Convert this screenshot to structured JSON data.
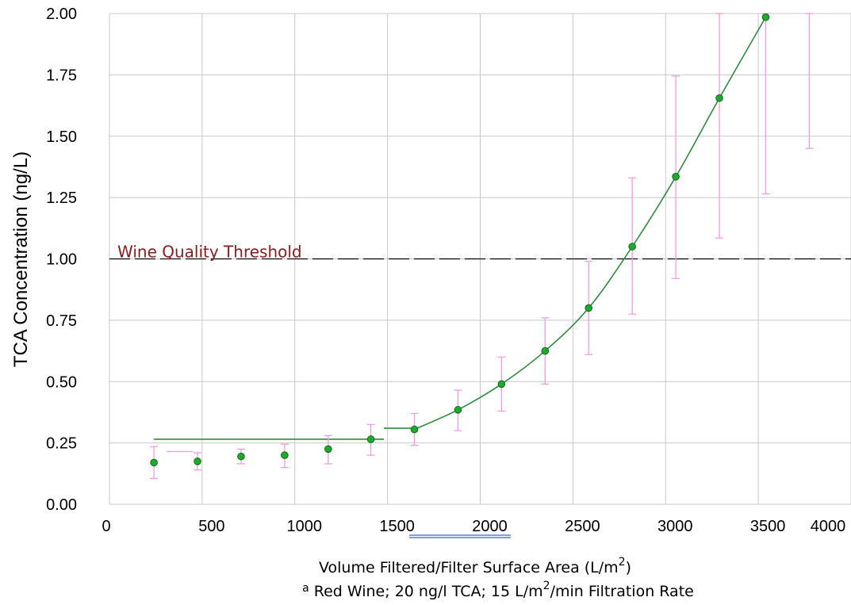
{
  "chart_data": {
    "type": "scatter",
    "x_axis": {
      "label": "Volume Filtered/Filter Surface Area (L/m",
      "label_sup": "2",
      "label_end": ")",
      "range": [
        0,
        4000
      ],
      "ticks": [
        "0",
        "500",
        "1000",
        "1500",
        "2000",
        "2500",
        "3000",
        "3500",
        "4000"
      ]
    },
    "y_axis": {
      "label": "TCA Concentration (ng/L)",
      "range": [
        0,
        2
      ],
      "ticks": [
        "0.00",
        "0.25",
        "0.50",
        "0.75",
        "1.00",
        "1.25",
        "1.50",
        "1.75",
        "2.00"
      ]
    },
    "grid": true,
    "threshold": {
      "label": "Wine Quality Threshold",
      "y": 1.0,
      "color": "#8B1A1A"
    },
    "footnote": {
      "marker": "a",
      "text_a": "Red Wine; 20 ng/l TCA; 15 L/m",
      "text_sup": "2",
      "text_b": "/min Filtration Rate"
    },
    "points": [
      {
        "x": 240,
        "y": 0.17,
        "lo": 0.105,
        "hi": 0.235
      },
      {
        "x": 475,
        "y": 0.175,
        "lo": 0.14,
        "hi": 0.21
      },
      {
        "x": 710,
        "y": 0.195,
        "lo": 0.165,
        "hi": 0.225
      },
      {
        "x": 945,
        "y": 0.2,
        "lo": 0.15,
        "hi": 0.245
      },
      {
        "x": 1180,
        "y": 0.225,
        "lo": 0.165,
        "hi": 0.28
      },
      {
        "x": 1410,
        "y": 0.265,
        "lo": 0.2,
        "hi": 0.325
      },
      {
        "x": 1645,
        "y": 0.305,
        "lo": 0.24,
        "hi": 0.37
      },
      {
        "x": 1880,
        "y": 0.385,
        "lo": 0.3,
        "hi": 0.465
      },
      {
        "x": 2115,
        "y": 0.49,
        "lo": 0.38,
        "hi": 0.6
      },
      {
        "x": 2350,
        "y": 0.625,
        "lo": 0.49,
        "hi": 0.76
      },
      {
        "x": 2585,
        "y": 0.8,
        "lo": 0.61,
        "hi": 0.99
      },
      {
        "x": 2820,
        "y": 1.05,
        "lo": 0.775,
        "hi": 1.33
      },
      {
        "x": 3055,
        "y": 1.335,
        "lo": 0.92,
        "hi": 1.745
      },
      {
        "x": 3290,
        "y": 1.655,
        "lo": 1.085,
        "hi": 2.0
      },
      {
        "x": 3540,
        "y": 1.985,
        "lo": 1.265,
        "hi": 2.0
      },
      {
        "x": 3775,
        "y": null,
        "lo": 1.45,
        "hi": 2.0
      }
    ],
    "extra_pink_segment": {
      "x1": 310,
      "x2": 450,
      "y": 0.215
    },
    "flat_fit_1": {
      "x1": 240,
      "x2": 1480,
      "y": 0.265
    },
    "flat_fit_2": {
      "x1": 1480,
      "x2": 1645,
      "y": 0.31
    },
    "curve_fit": [
      [
        1645,
        0.305
      ],
      [
        1880,
        0.385
      ],
      [
        2115,
        0.49
      ],
      [
        2350,
        0.625
      ],
      [
        2585,
        0.8
      ],
      [
        2820,
        1.05
      ],
      [
        3055,
        1.335
      ],
      [
        3290,
        1.655
      ],
      [
        3540,
        1.985
      ]
    ],
    "colors": {
      "point": "#1faa2e",
      "point_edge": "#0d6b1a",
      "error_bar": "#f39be0",
      "fit_line": "#2e8b3a",
      "threshold_line": "#000000",
      "grid": "#c8c8c8",
      "underline": "#3c64d2"
    }
  }
}
